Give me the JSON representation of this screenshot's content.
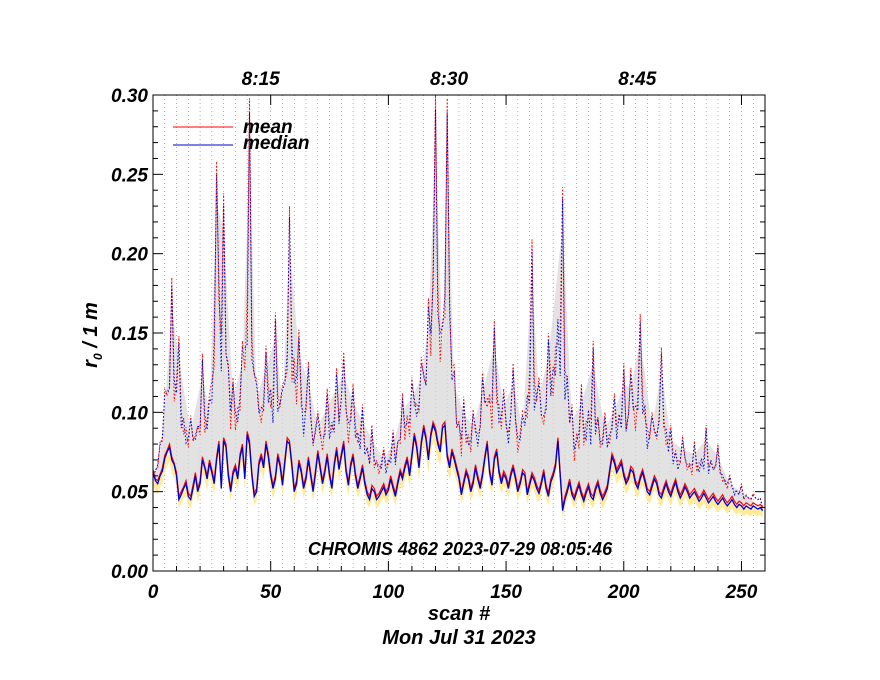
{
  "chart_data": {
    "type": "line",
    "title": "",
    "xlabel": "scan #",
    "ylabel_main": "r",
    "ylabel_sub": "0",
    "ylabel_rest": " / 1 m",
    "date_label": "Mon Jul 31 2023",
    "annotation": "CHROMIS 4862 2023-07-29 08:05:46",
    "xlim": [
      0,
      260
    ],
    "ylim": [
      0.0,
      0.3
    ],
    "x_ticks": [
      0,
      50,
      100,
      150,
      200,
      250
    ],
    "y_ticks": [
      0.0,
      0.05,
      0.1,
      0.15,
      0.2,
      0.25,
      0.3
    ],
    "y_tick_labels": [
      "0.00",
      "0.05",
      "0.10",
      "0.15",
      "0.20",
      "0.25",
      "0.30"
    ],
    "top_axis": {
      "ticks": [
        {
          "x": 50,
          "label": "8:15"
        },
        {
          "x": 130,
          "label": "8:30"
        },
        {
          "x": 210,
          "label": "8:45"
        }
      ]
    },
    "legend": [
      {
        "name": "mean",
        "color": "#ff0000"
      },
      {
        "name": "median",
        "color": "#0000cc"
      }
    ],
    "grid_vertical_step": 5,
    "colors": {
      "mean": "#ff0000",
      "median": "#0000cc",
      "range_gray": "#d8d8d8",
      "range_yellow": "#ffe680",
      "grid": "#777777"
    },
    "peaks": [
      [
        0,
        0.062
      ],
      [
        3,
        0.082
      ],
      [
        5,
        0.115
      ],
      [
        8,
        0.185
      ],
      [
        11,
        0.148
      ],
      [
        16,
        0.098
      ],
      [
        21,
        0.137
      ],
      [
        24,
        0.112
      ],
      [
        27,
        0.258
      ],
      [
        30,
        0.238
      ],
      [
        34,
        0.122
      ],
      [
        38,
        0.145
      ],
      [
        41,
        0.298
      ],
      [
        44,
        0.121
      ],
      [
        48,
        0.142
      ],
      [
        52,
        0.163
      ],
      [
        55,
        0.118
      ],
      [
        58,
        0.23
      ],
      [
        62,
        0.152
      ],
      [
        66,
        0.132
      ],
      [
        70,
        0.101
      ],
      [
        74,
        0.115
      ],
      [
        78,
        0.128
      ],
      [
        81,
        0.138
      ],
      [
        85,
        0.118
      ],
      [
        89,
        0.105
      ],
      [
        93,
        0.092
      ],
      [
        98,
        0.078
      ],
      [
        102,
        0.089
      ],
      [
        106,
        0.112
      ],
      [
        110,
        0.122
      ],
      [
        114,
        0.135
      ],
      [
        117,
        0.172
      ],
      [
        120,
        0.3
      ],
      [
        123,
        0.158
      ],
      [
        125,
        0.298
      ],
      [
        128,
        0.13
      ],
      [
        132,
        0.11
      ],
      [
        136,
        0.102
      ],
      [
        140,
        0.125
      ],
      [
        145,
        0.158
      ],
      [
        149,
        0.115
      ],
      [
        153,
        0.131
      ],
      [
        157,
        0.101
      ],
      [
        161,
        0.209
      ],
      [
        164,
        0.122
      ],
      [
        168,
        0.15
      ],
      [
        174,
        0.242
      ],
      [
        178,
        0.105
      ],
      [
        182,
        0.118
      ],
      [
        187,
        0.145
      ],
      [
        192,
        0.1
      ],
      [
        196,
        0.112
      ],
      [
        200,
        0.131
      ],
      [
        203,
        0.128
      ],
      [
        207,
        0.162
      ],
      [
        212,
        0.1
      ],
      [
        216,
        0.141
      ],
      [
        220,
        0.092
      ],
      [
        225,
        0.085
      ],
      [
        230,
        0.082
      ],
      [
        235,
        0.092
      ],
      [
        240,
        0.08
      ],
      [
        245,
        0.061
      ],
      [
        250,
        0.055
      ],
      [
        255,
        0.049
      ],
      [
        259,
        0.04
      ]
    ],
    "series": [
      {
        "name": "median",
        "style": "solid",
        "values": [
          0.062,
          0.057,
          0.055,
          0.06,
          0.063,
          0.071,
          0.075,
          0.078,
          0.07,
          0.067,
          0.06,
          0.045,
          0.048,
          0.052,
          0.055,
          0.047,
          0.045,
          0.052,
          0.06,
          0.05,
          0.055,
          0.07,
          0.065,
          0.058,
          0.068,
          0.062,
          0.055,
          0.07,
          0.08,
          0.052,
          0.082,
          0.078,
          0.06,
          0.05,
          0.061,
          0.065,
          0.058,
          0.072,
          0.078,
          0.058,
          0.086,
          0.08,
          0.06,
          0.047,
          0.05,
          0.067,
          0.072,
          0.065,
          0.08,
          0.072,
          0.06,
          0.052,
          0.058,
          0.072,
          0.066,
          0.054,
          0.068,
          0.082,
          0.08,
          0.066,
          0.05,
          0.055,
          0.068,
          0.062,
          0.052,
          0.058,
          0.07,
          0.06,
          0.05,
          0.061,
          0.074,
          0.065,
          0.055,
          0.062,
          0.072,
          0.06,
          0.052,
          0.066,
          0.076,
          0.064,
          0.072,
          0.08,
          0.063,
          0.054,
          0.066,
          0.072,
          0.06,
          0.052,
          0.058,
          0.065,
          0.055,
          0.048,
          0.045,
          0.052,
          0.05,
          0.045,
          0.047,
          0.05,
          0.053,
          0.048,
          0.051,
          0.058,
          0.052,
          0.047,
          0.055,
          0.062,
          0.058,
          0.065,
          0.07,
          0.06,
          0.072,
          0.085,
          0.078,
          0.065,
          0.08,
          0.09,
          0.083,
          0.07,
          0.085,
          0.092,
          0.088,
          0.08,
          0.075,
          0.09,
          0.092,
          0.072,
          0.065,
          0.075,
          0.07,
          0.064,
          0.058,
          0.048,
          0.055,
          0.062,
          0.058,
          0.05,
          0.055,
          0.065,
          0.058,
          0.052,
          0.06,
          0.071,
          0.08,
          0.062,
          0.054,
          0.07,
          0.075,
          0.062,
          0.055,
          0.061,
          0.058,
          0.052,
          0.06,
          0.065,
          0.058,
          0.05,
          0.055,
          0.062,
          0.06,
          0.048,
          0.054,
          0.06,
          0.057,
          0.052,
          0.049,
          0.055,
          0.062,
          0.052,
          0.047,
          0.056,
          0.06,
          0.066,
          0.082,
          0.06,
          0.038,
          0.045,
          0.05,
          0.056,
          0.048,
          0.045,
          0.05,
          0.054,
          0.048,
          0.044,
          0.049,
          0.053,
          0.047,
          0.045,
          0.051,
          0.055,
          0.049,
          0.045,
          0.048,
          0.052,
          0.062,
          0.072,
          0.068,
          0.062,
          0.065,
          0.068,
          0.06,
          0.055,
          0.058,
          0.064,
          0.062,
          0.055,
          0.052,
          0.058,
          0.062,
          0.056,
          0.05,
          0.048,
          0.053,
          0.058,
          0.055,
          0.048,
          0.046,
          0.051,
          0.055,
          0.05,
          0.047,
          0.052,
          0.056,
          0.05,
          0.046,
          0.049,
          0.053,
          0.05,
          0.046,
          0.048,
          0.05,
          0.047,
          0.044,
          0.046,
          0.049,
          0.046,
          0.043,
          0.045,
          0.047,
          0.044,
          0.042,
          0.044,
          0.046,
          0.043,
          0.041,
          0.043,
          0.045,
          0.042,
          0.04,
          0.042,
          0.041,
          0.039,
          0.041,
          0.04,
          0.039,
          0.041,
          0.04,
          0.039,
          0.04,
          0.038
        ]
      },
      {
        "name": "mean",
        "style": "solid",
        "values": [
          0.064,
          0.058,
          0.057,
          0.061,
          0.065,
          0.073,
          0.076,
          0.08,
          0.072,
          0.068,
          0.062,
          0.047,
          0.05,
          0.053,
          0.057,
          0.049,
          0.047,
          0.054,
          0.062,
          0.052,
          0.057,
          0.072,
          0.066,
          0.06,
          0.07,
          0.064,
          0.057,
          0.072,
          0.082,
          0.054,
          0.084,
          0.08,
          0.062,
          0.052,
          0.063,
          0.067,
          0.06,
          0.074,
          0.08,
          0.06,
          0.088,
          0.082,
          0.062,
          0.049,
          0.052,
          0.069,
          0.074,
          0.067,
          0.082,
          0.074,
          0.062,
          0.054,
          0.06,
          0.074,
          0.068,
          0.056,
          0.07,
          0.084,
          0.082,
          0.068,
          0.052,
          0.057,
          0.07,
          0.064,
          0.054,
          0.06,
          0.072,
          0.062,
          0.052,
          0.063,
          0.076,
          0.067,
          0.057,
          0.064,
          0.074,
          0.062,
          0.054,
          0.068,
          0.078,
          0.066,
          0.074,
          0.082,
          0.065,
          0.056,
          0.068,
          0.074,
          0.062,
          0.054,
          0.06,
          0.067,
          0.057,
          0.05,
          0.047,
          0.054,
          0.052,
          0.047,
          0.049,
          0.052,
          0.055,
          0.05,
          0.053,
          0.06,
          0.054,
          0.049,
          0.057,
          0.064,
          0.06,
          0.067,
          0.072,
          0.062,
          0.074,
          0.087,
          0.08,
          0.067,
          0.082,
          0.092,
          0.085,
          0.072,
          0.087,
          0.094,
          0.09,
          0.082,
          0.077,
          0.092,
          0.094,
          0.074,
          0.067,
          0.077,
          0.072,
          0.066,
          0.06,
          0.05,
          0.057,
          0.064,
          0.06,
          0.052,
          0.057,
          0.067,
          0.06,
          0.054,
          0.062,
          0.073,
          0.082,
          0.064,
          0.056,
          0.072,
          0.077,
          0.064,
          0.057,
          0.063,
          0.06,
          0.054,
          0.062,
          0.067,
          0.06,
          0.052,
          0.057,
          0.064,
          0.062,
          0.05,
          0.056,
          0.062,
          0.059,
          0.054,
          0.051,
          0.057,
          0.064,
          0.054,
          0.049,
          0.058,
          0.062,
          0.068,
          0.084,
          0.062,
          0.04,
          0.047,
          0.052,
          0.058,
          0.05,
          0.047,
          0.052,
          0.056,
          0.05,
          0.046,
          0.051,
          0.055,
          0.049,
          0.047,
          0.053,
          0.057,
          0.051,
          0.047,
          0.05,
          0.054,
          0.064,
          0.074,
          0.07,
          0.064,
          0.067,
          0.07,
          0.062,
          0.057,
          0.06,
          0.066,
          0.064,
          0.057,
          0.054,
          0.06,
          0.064,
          0.058,
          0.052,
          0.05,
          0.055,
          0.06,
          0.057,
          0.05,
          0.048,
          0.053,
          0.057,
          0.052,
          0.049,
          0.054,
          0.058,
          0.052,
          0.048,
          0.051,
          0.055,
          0.052,
          0.048,
          0.05,
          0.052,
          0.049,
          0.046,
          0.048,
          0.051,
          0.048,
          0.045,
          0.047,
          0.049,
          0.046,
          0.044,
          0.046,
          0.048,
          0.045,
          0.043,
          0.045,
          0.047,
          0.044,
          0.042,
          0.044,
          0.043,
          0.041,
          0.043,
          0.042,
          0.041,
          0.043,
          0.042,
          0.041,
          0.042,
          0.04
        ]
      }
    ]
  }
}
